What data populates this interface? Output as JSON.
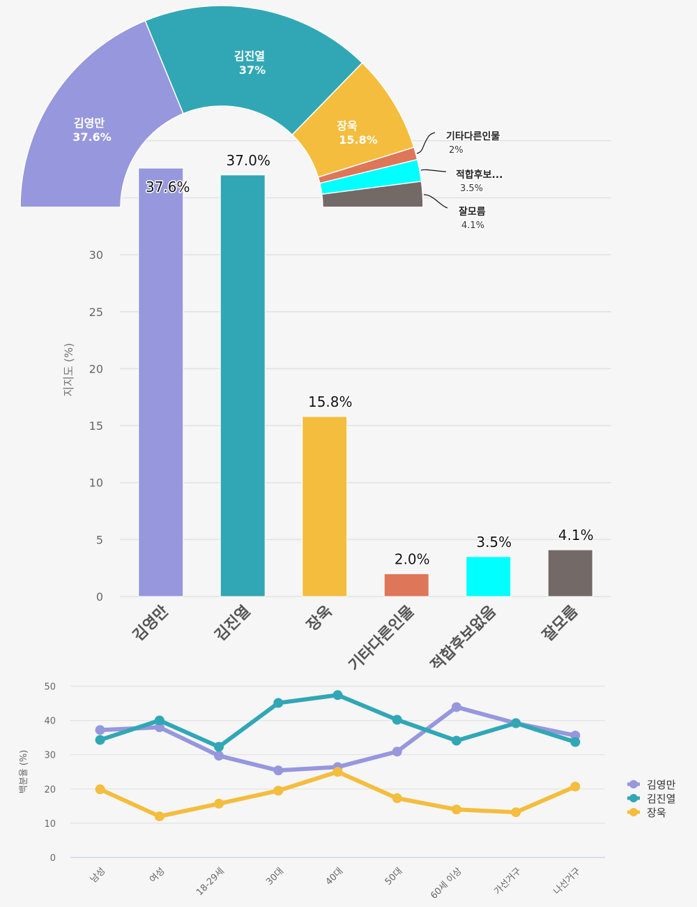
{
  "chart_data": [
    {
      "type": "pie",
      "variant": "semi-donut",
      "categories": [
        "김영만",
        "김진열",
        "장욱",
        "기타다른인물",
        "적합후보없음",
        "잘모름"
      ],
      "values": [
        37.6,
        37.0,
        15.8,
        2.0,
        3.5,
        4.1
      ],
      "inside_labels": [
        {
          "name": "김영만",
          "value": "37.6%"
        },
        {
          "name": "김진열",
          "value": "37%"
        },
        {
          "name": "장욱",
          "value": "15.8%"
        }
      ],
      "outside_labels": [
        {
          "name": "기타다른인물",
          "value": "2%"
        },
        {
          "name": "적합후보...",
          "value": "3.5%"
        },
        {
          "name": "잘모름",
          "value": "4.1%"
        }
      ],
      "colors": [
        "#9797de",
        "#31a7b5",
        "#f4bd3e",
        "#de765a",
        "#00ffff",
        "#736967"
      ]
    },
    {
      "type": "bar",
      "categories": [
        "김영만",
        "김진열",
        "장욱",
        "기타다른인물",
        "적합후보없음",
        "잘모름"
      ],
      "values": [
        37.6,
        37.0,
        15.8,
        2.0,
        3.5,
        4.1
      ],
      "data_labels": [
        "37.6%",
        "37.0%",
        "15.8%",
        "2.0%",
        "3.5%",
        "4.1%"
      ],
      "colors": [
        "#9797de",
        "#31a7b5",
        "#f4bd3e",
        "#de765a",
        "#00ffff",
        "#736967"
      ],
      "title": "",
      "xlabel": "",
      "ylabel": "지지도 (%)",
      "yticks": [
        0,
        5,
        10,
        15,
        20,
        25,
        30
      ],
      "ylim": [
        0,
        40
      ],
      "grid": true
    },
    {
      "type": "line",
      "categories": [
        "남성",
        "여성",
        "18-29세",
        "30대",
        "40대",
        "50대",
        "60세 이상",
        "가선거구",
        "나선거구"
      ],
      "series": [
        {
          "name": "김영만",
          "color": "#9797de",
          "values": [
            37.2,
            38.0,
            29.7,
            25.4,
            26.4,
            30.9,
            43.9,
            39.2,
            35.6
          ]
        },
        {
          "name": "김진열",
          "color": "#31a7b5",
          "values": [
            34.3,
            40.0,
            32.3,
            45.1,
            47.4,
            40.2,
            34.1,
            39.2,
            33.7
          ]
        },
        {
          "name": "장욱",
          "color": "#f4bd3e",
          "values": [
            19.9,
            12.0,
            15.7,
            19.5,
            25.0,
            17.3,
            14.0,
            13.2,
            20.7
          ]
        }
      ],
      "title": "",
      "xlabel": "",
      "ylabel": "백분율 (%)",
      "yticks": [
        0,
        10,
        20,
        30,
        40,
        50
      ],
      "ylim": [
        0,
        50
      ],
      "grid": true,
      "legend_position": "right"
    }
  ]
}
